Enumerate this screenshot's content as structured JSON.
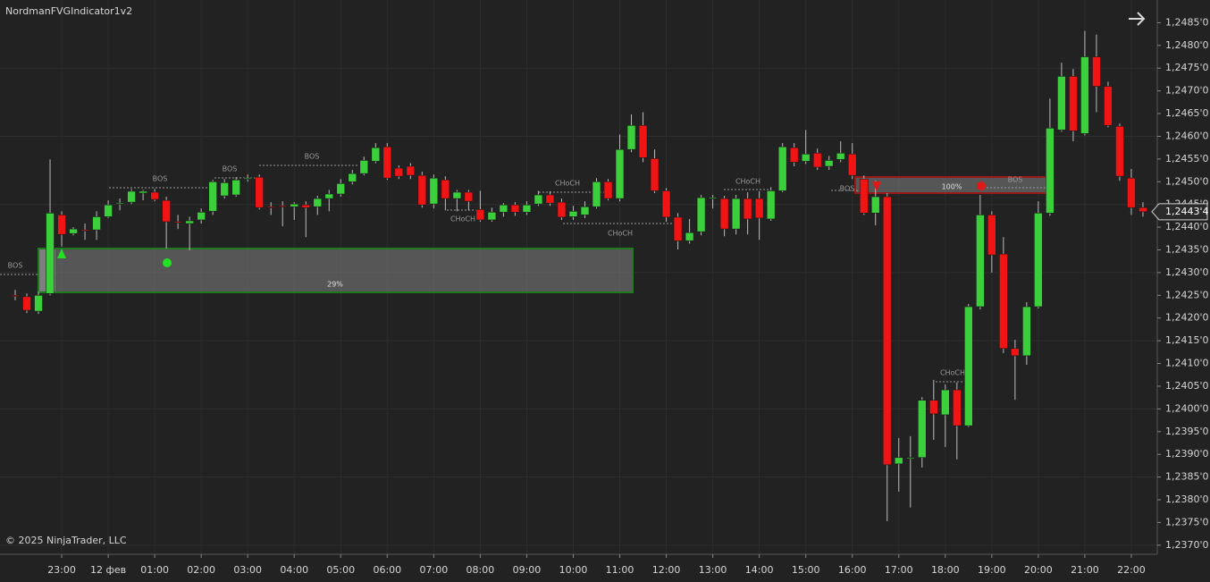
{
  "chart_data": {
    "type": "candlestick",
    "title": "NordmanFVGIndicator1v2",
    "footnote": "© 2025 NinjaTrader, LLC",
    "categories": [
      null,
      null,
      null,
      null,
      "23:00",
      null,
      null,
      null,
      "12 фев",
      null,
      null,
      null,
      "01:00",
      null,
      null,
      null,
      "02:00",
      null,
      null,
      null,
      "03:00",
      null,
      null,
      null,
      "04:00",
      null,
      null,
      null,
      "05:00",
      null,
      null,
      null,
      "06:00",
      null,
      null,
      null,
      "07:00",
      null,
      null,
      null,
      "08:00",
      null,
      null,
      null,
      "09:00",
      null,
      null,
      null,
      "10:00",
      null,
      null,
      null,
      "11:00",
      null,
      null,
      null,
      "12:00",
      null,
      null,
      null,
      "13:00",
      null,
      null,
      null,
      "14:00",
      null,
      null,
      null,
      "15:00",
      null,
      null,
      null,
      "16:00",
      null,
      null,
      null,
      "17:00",
      null,
      null,
      null,
      "18:00",
      null,
      null,
      null,
      "19:00",
      null,
      null,
      null,
      "20:00",
      null,
      null,
      null,
      "21:00",
      null,
      null,
      null,
      "22:00",
      null
    ],
    "open": [
      1.2425,
      1.24247,
      1.24215,
      1.24254,
      1.24427,
      1.24386,
      1.24394,
      1.24394,
      1.24423,
      1.24451,
      1.24455,
      1.24475,
      1.24477,
      1.24459,
      1.24412,
      1.24408,
      1.24416,
      1.24435,
      1.24469,
      1.24471,
      1.24506,
      1.2451,
      1.24445,
      1.24447,
      1.24445,
      1.24449,
      1.24445,
      1.24463,
      1.24473,
      1.245,
      1.24518,
      1.24545,
      1.24577,
      1.2453,
      1.24534,
      1.24514,
      1.24451,
      1.24504,
      1.24463,
      1.24477,
      1.24439,
      1.24416,
      1.24433,
      1.24449,
      1.24433,
      1.24451,
      1.24471,
      1.24455,
      1.24423,
      1.24427,
      1.24445,
      1.245,
      1.24463,
      1.24571,
      1.24624,
      1.24551,
      1.2448,
      1.24422,
      1.2437,
      1.2439,
      1.24463,
      1.24463,
      1.24396,
      1.24463,
      1.24463,
      1.24418,
      1.2448,
      1.24575,
      1.24545,
      1.24563,
      1.24534,
      1.24549,
      1.24561,
      1.24506,
      1.24431,
      1.24467,
      1.23879,
      1.23891,
      1.23893,
      1.24019,
      1.23987,
      1.24042,
      1.23963,
      1.24225,
      1.24427,
      1.24341,
      1.24133,
      1.24117,
      1.24225,
      1.24431,
      1.24614,
      1.24732,
      1.24606,
      1.24775,
      1.2471,
      1.24622,
      1.24508,
      1.24443
    ],
    "high": [
      1.24262,
      1.24254,
      1.24258,
      1.24549,
      1.24435,
      1.244,
      1.24408,
      1.24435,
      1.24459,
      1.24463,
      1.24484,
      1.24482,
      1.24484,
      1.24467,
      1.24427,
      1.24423,
      1.24441,
      1.24504,
      1.24506,
      1.2451,
      1.24516,
      1.24516,
      1.24455,
      1.24457,
      1.24455,
      1.24457,
      1.24469,
      1.24482,
      1.24506,
      1.24526,
      1.24555,
      1.24585,
      1.24585,
      1.24536,
      1.24541,
      1.24522,
      1.24516,
      1.24512,
      1.24482,
      1.24482,
      1.2448,
      1.24443,
      1.24453,
      1.24455,
      1.24457,
      1.2448,
      1.24479,
      1.24463,
      1.24447,
      1.24457,
      1.24508,
      1.24506,
      1.24604,
      1.24648,
      1.24653,
      1.24571,
      1.24486,
      1.24431,
      1.24418,
      1.24471,
      1.24471,
      1.24469,
      1.24471,
      1.24477,
      1.24479,
      1.24488,
      1.24585,
      1.24585,
      1.24614,
      1.24573,
      1.24557,
      1.24589,
      1.24585,
      1.24514,
      1.24502,
      1.24475,
      1.23936,
      1.2394,
      1.24026,
      1.24064,
      1.24054,
      1.24058,
      1.24231,
      1.24471,
      1.24435,
      1.24378,
      1.24152,
      1.24235,
      1.24457,
      1.24683,
      1.24762,
      1.24748,
      1.24832,
      1.24824,
      1.2472,
      1.24628,
      1.24528,
      1.24455
    ],
    "low": [
      1.24239,
      1.24211,
      1.24209,
      1.2425,
      1.24357,
      1.24382,
      1.24372,
      1.24372,
      1.2442,
      1.24437,
      1.24451,
      1.24459,
      1.24457,
      1.24353,
      1.24396,
      1.24349,
      1.24408,
      1.24427,
      1.24463,
      1.24467,
      1.245,
      1.24439,
      1.24427,
      1.24402,
      1.24416,
      1.24378,
      1.24427,
      1.24435,
      1.24467,
      1.24494,
      1.24514,
      1.24541,
      1.24504,
      1.24506,
      1.24506,
      1.24443,
      1.24441,
      1.24437,
      1.24435,
      1.24437,
      1.24412,
      1.24412,
      1.24423,
      1.24425,
      1.24427,
      1.24447,
      1.24447,
      1.24416,
      1.24416,
      1.2442,
      1.24441,
      1.24459,
      1.24457,
      1.24565,
      1.24543,
      1.24475,
      1.24412,
      1.24351,
      1.24364,
      1.24382,
      1.24441,
      1.2438,
      1.24384,
      1.24384,
      1.24372,
      1.24414,
      1.24477,
      1.24534,
      1.24539,
      1.24526,
      1.24526,
      1.24543,
      1.24506,
      1.24427,
      1.24404,
      1.23753,
      1.23818,
      1.23783,
      1.23871,
      1.23932,
      1.23916,
      1.23889,
      1.2396,
      1.24219,
      1.243,
      1.24123,
      1.2402,
      1.24097,
      1.24221,
      1.24425,
      1.2461,
      1.24589,
      1.24602,
      1.24653,
      1.2462,
      1.24502,
      1.24427,
      1.24423
    ],
    "close": [
      1.24248,
      1.24217,
      1.2425,
      1.24431,
      1.24384,
      1.24396,
      1.24392,
      1.24423,
      1.24449,
      1.24453,
      1.24479,
      1.24479,
      1.24461,
      1.24412,
      1.2441,
      1.24414,
      1.24433,
      1.245,
      1.24498,
      1.24504,
      1.24508,
      1.24443,
      1.24443,
      1.24445,
      1.24451,
      1.24443,
      1.24463,
      1.24473,
      1.24496,
      1.24518,
      1.24547,
      1.24575,
      1.24508,
      1.24512,
      1.24514,
      1.24449,
      1.24508,
      1.24463,
      1.24477,
      1.24457,
      1.24416,
      1.24433,
      1.24449,
      1.24433,
      1.24449,
      1.24471,
      1.24453,
      1.24422,
      1.24435,
      1.24445,
      1.245,
      1.24463,
      1.24571,
      1.24624,
      1.24553,
      1.2448,
      1.24422,
      1.2437,
      1.24388,
      1.24465,
      1.24465,
      1.24396,
      1.24463,
      1.24418,
      1.2442,
      1.2448,
      1.24577,
      1.24543,
      1.24561,
      1.24532,
      1.24547,
      1.24563,
      1.24514,
      1.24431,
      1.24467,
      1.23877,
      1.23893,
      1.23893,
      1.24019,
      1.23989,
      1.24042,
      1.23963,
      1.24225,
      1.24427,
      1.24339,
      1.24133,
      1.24117,
      1.24225,
      1.24431,
      1.24618,
      1.24732,
      1.24612,
      1.24775,
      1.2471,
      1.24624,
      1.24512,
      1.24443,
      1.24434
    ],
    "up_color": "#3ccf3c",
    "down_color": "#f01414",
    "ylim": [
      1.2368,
      1.249
    ],
    "yticks": [
      {
        "value": 1.2485,
        "label": "1,2485'0"
      },
      {
        "value": 1.248,
        "label": "1,2480'0"
      },
      {
        "value": 1.2475,
        "label": "1,2475'0"
      },
      {
        "value": 1.247,
        "label": "1,2470'0"
      },
      {
        "value": 1.2465,
        "label": "1,2465'0"
      },
      {
        "value": 1.246,
        "label": "1,2460'0"
      },
      {
        "value": 1.2455,
        "label": "1,2455'0"
      },
      {
        "value": 1.245,
        "label": "1,2450'0"
      },
      {
        "value": 1.2445,
        "label": "1,2445'0"
      },
      {
        "value": 1.244,
        "label": "1,2440'0"
      },
      {
        "value": 1.2435,
        "label": "1,2435'0"
      },
      {
        "value": 1.243,
        "label": "1,2430'0"
      },
      {
        "value": 1.2425,
        "label": "1,2425'0"
      },
      {
        "value": 1.242,
        "label": "1,2420'0"
      },
      {
        "value": 1.2415,
        "label": "1,2415'0"
      },
      {
        "value": 1.241,
        "label": "1,2410'0"
      },
      {
        "value": 1.2405,
        "label": "1,2405'0"
      },
      {
        "value": 1.24,
        "label": "1,2400'0"
      },
      {
        "value": 1.2395,
        "label": "1,2395'0"
      },
      {
        "value": 1.239,
        "label": "1,2390'0"
      },
      {
        "value": 1.2385,
        "label": "1,2385'0"
      },
      {
        "value": 1.238,
        "label": "1,2380'0"
      },
      {
        "value": 1.2375,
        "label": "1,2375'0"
      },
      {
        "value": 1.237,
        "label": "1,2370'0"
      }
    ],
    "grid": true,
    "last_price": {
      "value": 1.24434,
      "label": "1,2443'4"
    },
    "zones": [
      {
        "label": "29%",
        "color": "#1f7a1f"
      },
      {
        "label": "100%",
        "color": "#9a1818"
      }
    ],
    "structure_labels": [
      "BOS",
      "BOS",
      "BOS",
      "BOS",
      "BOS",
      "BOS",
      "CHoCH",
      "CHoCH",
      "CHoCH",
      "CHoCH",
      "CHoCH"
    ]
  }
}
